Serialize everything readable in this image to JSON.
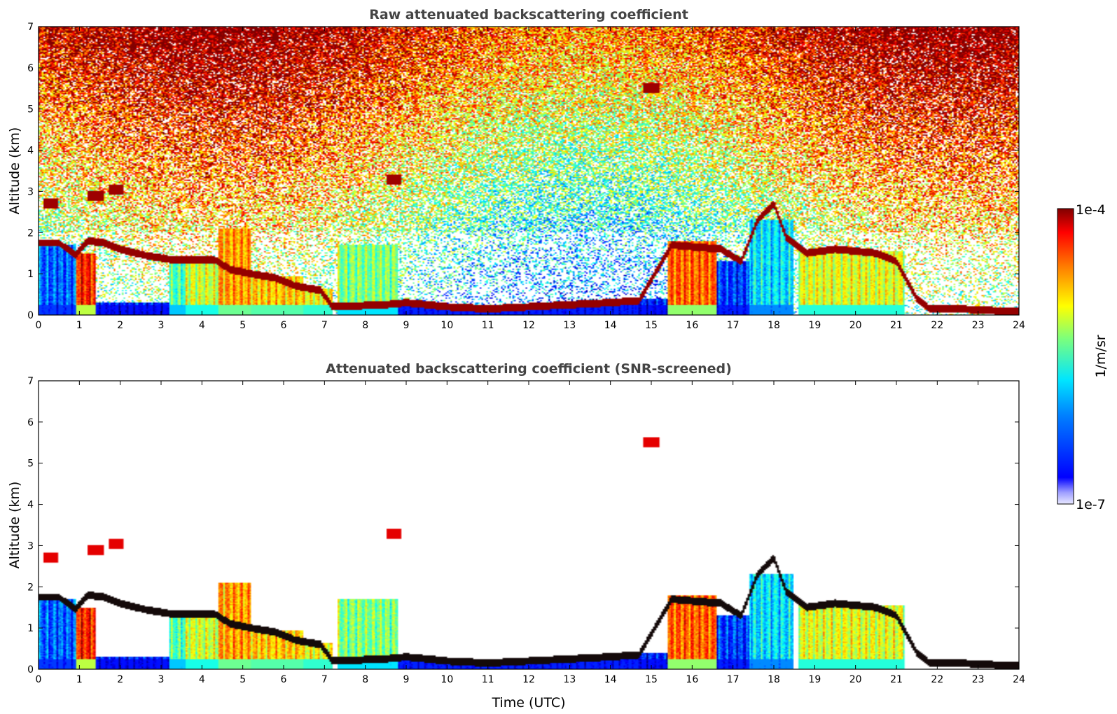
{
  "chart_data": [
    {
      "type": "heatmap",
      "title": "Raw attenuated backscattering coefficient",
      "xlabel": "",
      "ylabel": "Altitude (km)",
      "xlim": [
        0,
        24
      ],
      "ylim": [
        0,
        7
      ],
      "xticks": [
        "0",
        "1",
        "2",
        "3",
        "4",
        "5",
        "6",
        "7",
        "8",
        "9",
        "10",
        "11",
        "12",
        "13",
        "14",
        "15",
        "16",
        "17",
        "18",
        "19",
        "20",
        "21",
        "22",
        "23",
        "24"
      ],
      "yticks": [
        "0",
        "1",
        "2",
        "3",
        "4",
        "5",
        "6",
        "7"
      ],
      "background": "noisy",
      "features": {
        "strong_layer": [
          [
            0.0,
            1.75
          ],
          [
            0.5,
            1.75
          ],
          [
            0.9,
            1.45
          ],
          [
            1.2,
            1.8
          ],
          [
            1.6,
            1.75
          ],
          [
            2.0,
            1.6
          ],
          [
            2.6,
            1.45
          ],
          [
            3.2,
            1.35
          ],
          [
            3.8,
            1.35
          ],
          [
            4.3,
            1.35
          ],
          [
            4.7,
            1.1
          ],
          [
            5.2,
            1.0
          ],
          [
            5.8,
            0.9
          ],
          [
            6.3,
            0.7
          ],
          [
            6.9,
            0.6
          ],
          [
            7.2,
            0.2
          ],
          [
            8.5,
            0.25
          ],
          [
            9.0,
            0.3
          ],
          [
            10.0,
            0.2
          ],
          [
            11.0,
            0.15
          ],
          [
            12.0,
            0.2
          ],
          [
            13.0,
            0.25
          ],
          [
            14.0,
            0.3
          ],
          [
            14.7,
            0.35
          ],
          [
            15.5,
            1.7
          ],
          [
            16.7,
            1.6
          ],
          [
            17.2,
            1.3
          ],
          [
            17.6,
            2.3
          ],
          [
            18.0,
            2.7
          ],
          [
            18.3,
            1.9
          ],
          [
            18.8,
            1.5
          ],
          [
            19.5,
            1.6
          ],
          [
            20.5,
            1.5
          ],
          [
            21.0,
            1.3
          ],
          [
            21.5,
            0.4
          ],
          [
            21.8,
            0.15
          ],
          [
            22.5,
            0.15
          ],
          [
            23.5,
            0.1
          ],
          [
            24.0,
            0.1
          ]
        ],
        "aerosol_blocks": [
          {
            "x0": 0.0,
            "x1": 0.9,
            "top": 1.7,
            "level": 0.22
          },
          {
            "x0": 0.9,
            "x1": 1.4,
            "top": 1.5,
            "level": 0.85
          },
          {
            "x0": 1.4,
            "x1": 3.2,
            "top": 0.3,
            "level": 0.15
          },
          {
            "x0": 3.2,
            "x1": 3.6,
            "top": 1.3,
            "level": 0.45
          },
          {
            "x0": 3.6,
            "x1": 4.4,
            "top": 1.3,
            "level": 0.58
          },
          {
            "x0": 4.4,
            "x1": 5.2,
            "top": 2.1,
            "level": 0.72
          },
          {
            "x0": 5.2,
            "x1": 6.5,
            "top": 0.95,
            "level": 0.68
          },
          {
            "x0": 6.5,
            "x1": 7.2,
            "top": 0.65,
            "level": 0.62
          },
          {
            "x0": 7.3,
            "x1": 8.8,
            "top": 1.7,
            "level": 0.5
          },
          {
            "x0": 8.8,
            "x1": 14.7,
            "top": 0.25,
            "level": 0.18
          },
          {
            "x0": 14.7,
            "x1": 15.4,
            "top": 0.4,
            "level": 0.15
          },
          {
            "x0": 15.4,
            "x1": 16.6,
            "top": 1.8,
            "level": 0.78
          },
          {
            "x0": 16.6,
            "x1": 17.4,
            "top": 1.3,
            "level": 0.18
          },
          {
            "x0": 17.4,
            "x1": 18.5,
            "top": 2.3,
            "level": 0.35
          },
          {
            "x0": 18.6,
            "x1": 21.2,
            "top": 1.55,
            "level": 0.6
          }
        ],
        "elevated_cloud_fragments": [
          [
            0.3,
            2.7
          ],
          [
            1.4,
            2.9
          ],
          [
            1.9,
            3.05
          ],
          [
            8.7,
            3.3
          ],
          [
            15.0,
            5.5
          ]
        ]
      },
      "colorscale": "jet"
    },
    {
      "type": "heatmap",
      "title": "Attenuated backscattering coefficient (SNR-screened)",
      "xlabel": "Time (UTC)",
      "ylabel": "Altitude (km)",
      "xlim": [
        0,
        24
      ],
      "ylim": [
        0,
        7
      ],
      "xticks": [
        "0",
        "1",
        "2",
        "3",
        "4",
        "5",
        "6",
        "7",
        "8",
        "9",
        "10",
        "11",
        "12",
        "13",
        "14",
        "15",
        "16",
        "17",
        "18",
        "19",
        "20",
        "21",
        "22",
        "23",
        "24"
      ],
      "yticks": [
        "0",
        "1",
        "2",
        "3",
        "4",
        "5",
        "6",
        "7"
      ],
      "background": "screened",
      "colorscale": "jet"
    }
  ],
  "colorbar": {
    "max_label": "1e-4",
    "min_label": "1e-7",
    "unit_label": "1/m/sr",
    "scale": "log"
  }
}
